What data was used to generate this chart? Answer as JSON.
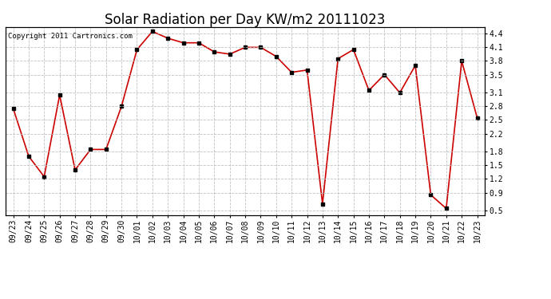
{
  "title": "Solar Radiation per Day KW/m2 20111023",
  "copyright_text": "Copyright 2011 Cartronics.com",
  "dates": [
    "09/23",
    "09/24",
    "09/25",
    "09/26",
    "09/27",
    "09/28",
    "09/29",
    "09/30",
    "10/01",
    "10/02",
    "10/03",
    "10/04",
    "10/05",
    "10/06",
    "10/07",
    "10/08",
    "10/09",
    "10/10",
    "10/11",
    "10/12",
    "10/13",
    "10/14",
    "10/15",
    "10/16",
    "10/17",
    "10/18",
    "10/19",
    "10/20",
    "10/21",
    "10/22",
    "10/23"
  ],
  "values": [
    2.75,
    1.7,
    1.25,
    3.05,
    1.4,
    1.85,
    1.85,
    2.8,
    4.05,
    4.45,
    4.3,
    4.2,
    4.2,
    4.0,
    3.95,
    4.1,
    4.1,
    3.9,
    3.55,
    3.6,
    0.65,
    3.85,
    4.05,
    3.15,
    3.5,
    3.1,
    3.7,
    0.85,
    0.55,
    3.8,
    2.55
  ],
  "line_color": "#cc0000",
  "marker_color": "#000000",
  "bg_color": "#ffffff",
  "grid_color": "#bbbbbb",
  "ylim": [
    0.4,
    4.55
  ],
  "yticks": [
    0.5,
    0.9,
    1.2,
    1.5,
    1.8,
    2.2,
    2.5,
    2.8,
    3.1,
    3.5,
    3.8,
    4.1,
    4.4
  ],
  "title_fontsize": 12,
  "tick_fontsize": 7,
  "copyright_fontsize": 6.5
}
